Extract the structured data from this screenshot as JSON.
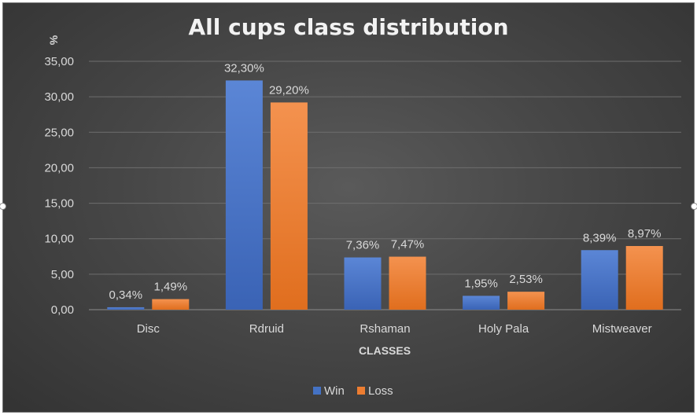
{
  "chart_data": {
    "type": "bar",
    "title": "All cups class distribution",
    "xlabel": "CLASSES",
    "ylabel": "%",
    "categories": [
      "Disc",
      "Rdruid",
      "Rshaman",
      "Holy Pala",
      "Mistweaver"
    ],
    "series": [
      {
        "name": "Win",
        "values": [
          0.34,
          32.3,
          7.36,
          1.95,
          8.39
        ],
        "labels": [
          "0,34%",
          "32,30%",
          "7,36%",
          "1,95%",
          "8,39%"
        ],
        "color": "#4472c4"
      },
      {
        "name": "Loss",
        "values": [
          1.49,
          29.2,
          7.47,
          2.53,
          8.97
        ],
        "labels": [
          "1,49%",
          "29,20%",
          "7,47%",
          "2,53%",
          "8,97%"
        ],
        "color": "#ed7d31"
      }
    ],
    "ylim": [
      0,
      35
    ],
    "yticks": [
      0,
      5,
      10,
      15,
      20,
      25,
      30,
      35
    ],
    "ytick_labels": [
      "0,00",
      "5,00",
      "10,00",
      "15,00",
      "20,00",
      "25,00",
      "30,00",
      "35,00"
    ],
    "grid": true,
    "legend_position": "bottom"
  }
}
